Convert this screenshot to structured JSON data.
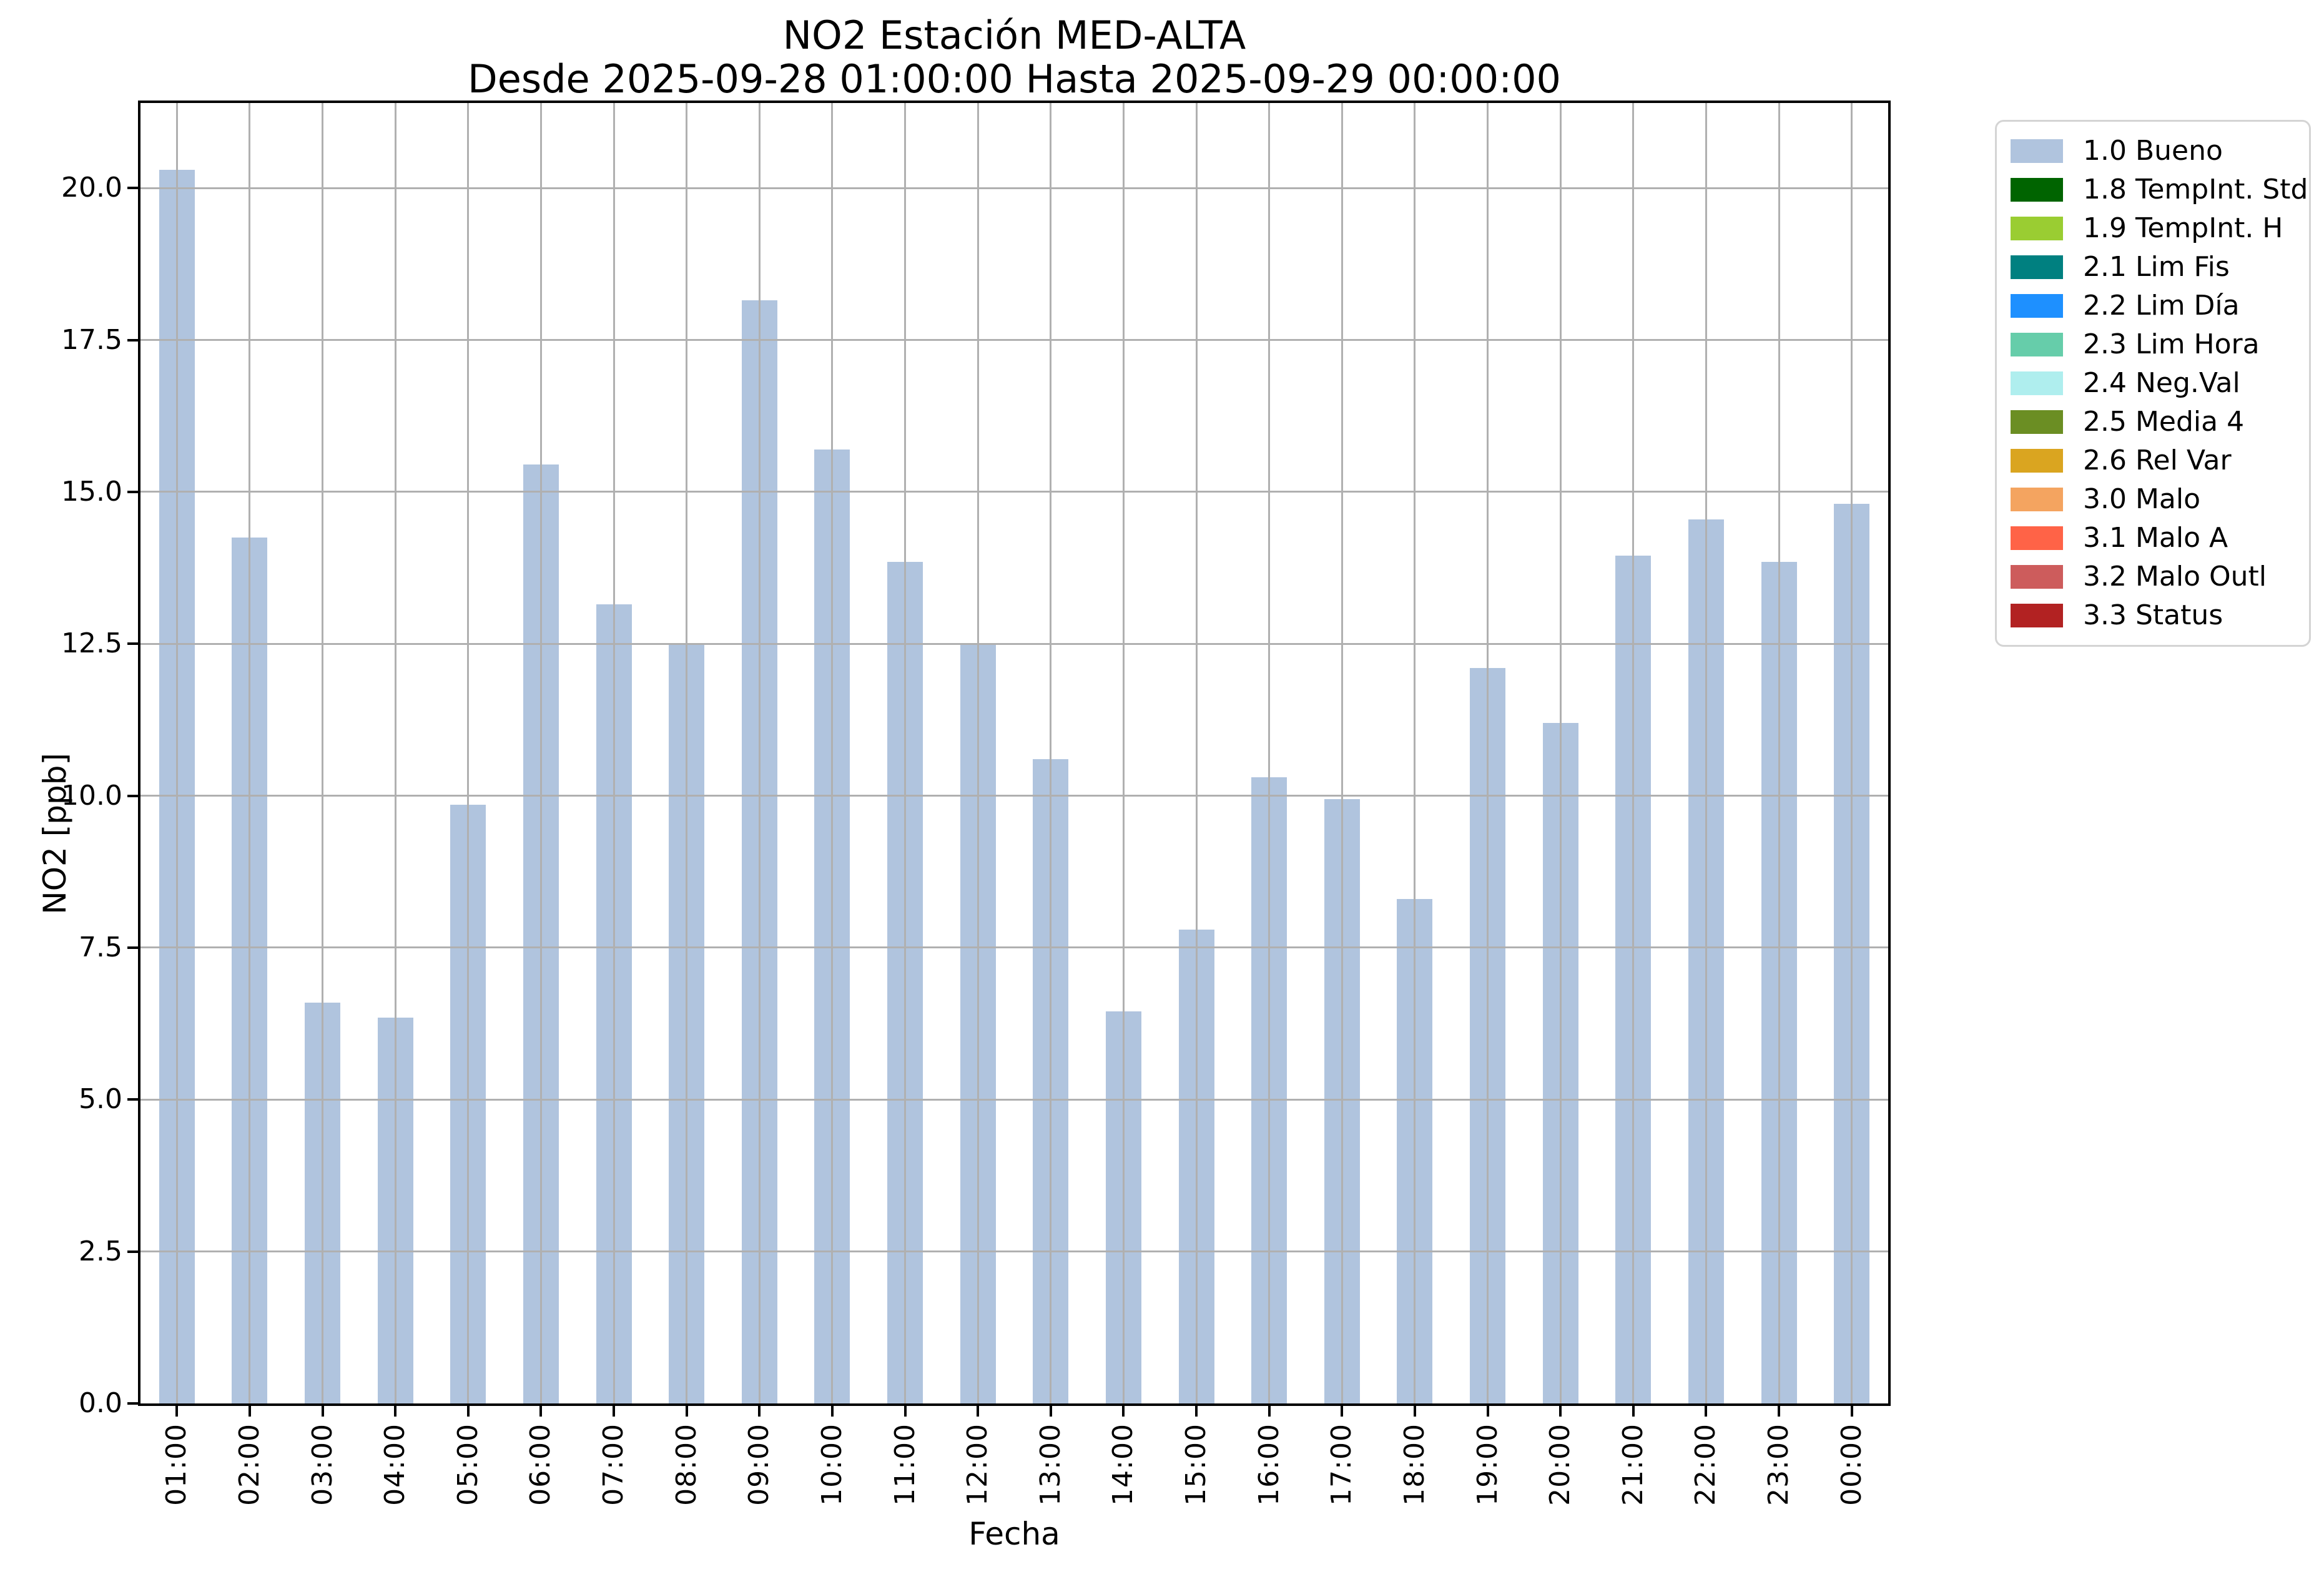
{
  "figure": {
    "background": "#ffffff"
  },
  "chart_data": {
    "type": "bar",
    "title": "NO2 Estación MED-ALTA",
    "subtitle": "Desde 2025-09-28 01:00:00 Hasta 2025-09-29 00:00:00",
    "xlabel": "Fecha",
    "ylabel": "NO2 [ppb]",
    "categories": [
      "01:00",
      "02:00",
      "03:00",
      "04:00",
      "05:00",
      "06:00",
      "07:00",
      "08:00",
      "09:00",
      "10:00",
      "11:00",
      "12:00",
      "13:00",
      "14:00",
      "15:00",
      "16:00",
      "17:00",
      "18:00",
      "19:00",
      "20:00",
      "21:00",
      "22:00",
      "23:00",
      "00:00"
    ],
    "series": [
      {
        "name": "1.0 Bueno",
        "values": [
          20.3,
          14.25,
          6.6,
          6.35,
          9.85,
          15.45,
          13.15,
          12.5,
          18.15,
          15.7,
          13.85,
          12.5,
          10.6,
          6.45,
          7.8,
          10.3,
          9.95,
          8.3,
          12.1,
          11.2,
          13.95,
          14.55,
          13.85,
          14.8
        ]
      }
    ],
    "bar_color": "#b0c4de",
    "grid": true,
    "grid_color": "#b0b0b0",
    "ylim": [
      0,
      21.4
    ],
    "yticks": [
      0.0,
      2.5,
      5.0,
      7.5,
      10.0,
      12.5,
      15.0,
      17.5,
      20.0
    ],
    "ytick_labels": [
      "0.0",
      "2.5",
      "5.0",
      "7.5",
      "10.0",
      "12.5",
      "15.0",
      "17.5",
      "20.0"
    ],
    "legend_position": "outside-right",
    "legend": [
      {
        "label": "1.0 Bueno",
        "color": "#b0c4de"
      },
      {
        "label": "1.8 TempInt. Std",
        "color": "#006400"
      },
      {
        "label": "1.9 TempInt. H",
        "color": "#9acd32"
      },
      {
        "label": "2.1 Lim Fis",
        "color": "#008080"
      },
      {
        "label": "2.2 Lim Día",
        "color": "#1e90ff"
      },
      {
        "label": "2.3 Lim Hora",
        "color": "#66cdaa"
      },
      {
        "label": "2.4 Neg.Val",
        "color": "#afeeee"
      },
      {
        "label": "2.5 Media 4",
        "color": "#6b8e23"
      },
      {
        "label": "2.6 Rel Var",
        "color": "#daa520"
      },
      {
        "label": "3.0 Malo",
        "color": "#f4a460"
      },
      {
        "label": "3.1 Malo A",
        "color": "#ff6347"
      },
      {
        "label": "3.2 Malo Outl",
        "color": "#cd5c5c"
      },
      {
        "label": "3.3 Status",
        "color": "#b22222"
      }
    ]
  }
}
